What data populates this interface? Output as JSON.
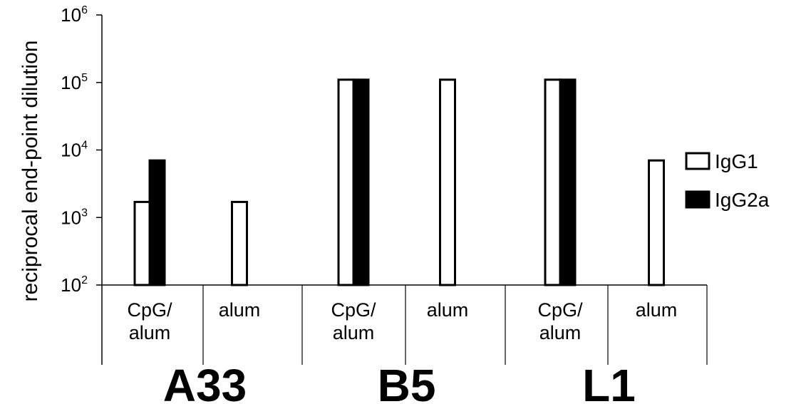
{
  "chart_data": {
    "type": "bar",
    "ylabel": "reciprocal end-point dilution",
    "yscale": "log",
    "ylim": [
      100,
      1000000
    ],
    "yticks": [
      {
        "value": 100,
        "base": "10",
        "exp": "2"
      },
      {
        "value": 1000,
        "base": "10",
        "exp": "3"
      },
      {
        "value": 10000,
        "base": "10",
        "exp": "4"
      },
      {
        "value": 100000,
        "base": "10",
        "exp": "5"
      },
      {
        "value": 1000000,
        "base": "10",
        "exp": "6"
      }
    ],
    "groups": [
      {
        "label": "A33",
        "categories": [
          {
            "label_lines": [
              "CpG/",
              "alum"
            ],
            "IgG1": 1700,
            "IgG2a": 7000
          },
          {
            "label_lines": [
              "alum"
            ],
            "IgG1": 1700,
            "IgG2a": null
          }
        ]
      },
      {
        "label": "B5",
        "categories": [
          {
            "label_lines": [
              "CpG/",
              "alum"
            ],
            "IgG1": 110000,
            "IgG2a": 110000
          },
          {
            "label_lines": [
              "alum"
            ],
            "IgG1": 110000,
            "IgG2a": null
          }
        ]
      },
      {
        "label": "L1",
        "categories": [
          {
            "label_lines": [
              "CpG/",
              "alum"
            ],
            "IgG1": 110000,
            "IgG2a": 110000
          },
          {
            "label_lines": [
              "alum"
            ],
            "IgG1": 7000,
            "IgG2a": null
          }
        ]
      }
    ],
    "series": [
      {
        "name": "IgG1",
        "fill": "#ffffff",
        "stroke": "#000000"
      },
      {
        "name": "IgG2a",
        "fill": "#000000",
        "stroke": "#000000"
      }
    ],
    "grid": false,
    "legend_position": "right"
  }
}
